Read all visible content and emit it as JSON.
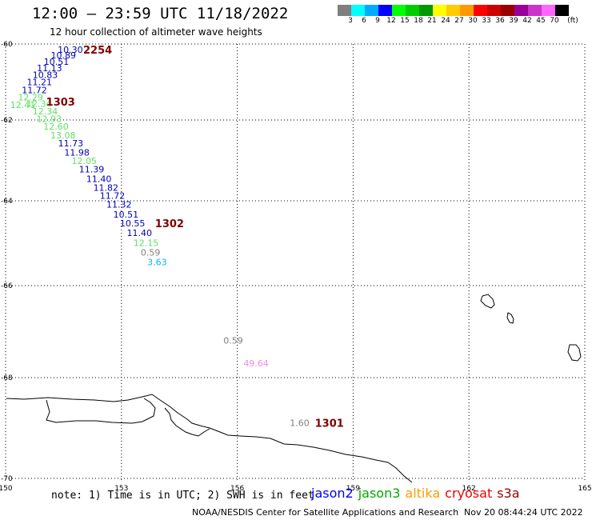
{
  "header": {
    "title": "12:00 – 23:59 UTC 11/18/2022",
    "subtitle": "12 hour collection of altimeter wave heights"
  },
  "color_scale": {
    "labels": [
      "3",
      "6",
      "9",
      "12",
      "15",
      "18",
      "21",
      "24",
      "27",
      "30",
      "33",
      "36",
      "39",
      "42",
      "45",
      "70",
      "(ft)"
    ],
    "colors": [
      "#7f7f7f",
      "#00ffff",
      "#00aaff",
      "#0000ff",
      "#00ff00",
      "#00cc00",
      "#009900",
      "#ffff00",
      "#ffcc00",
      "#ff9900",
      "#ff0000",
      "#cc0000",
      "#990000",
      "#990099",
      "#cc33cc",
      "#ff66ff",
      "#000000"
    ]
  },
  "axes": {
    "lon_labels": [
      "150",
      "153",
      "156",
      "159",
      "162",
      "165"
    ],
    "lat_labels": [
      "-60",
      "-62",
      "-64",
      "-66",
      "-68",
      "-70"
    ]
  },
  "map": {
    "lon_range": [
      150,
      165
    ],
    "lat_range": [
      -60,
      -70
    ],
    "obs_colors": {
      "gray": "#808080",
      "navy": "#0000b4",
      "green": "#60e060",
      "cyan": "#00b4ff",
      "pink": "#ee88ee",
      "time": "#800000"
    },
    "observations": [
      {
        "text": "10.30",
        "lon": 151.35,
        "lat": -60.04,
        "color": "navy"
      },
      {
        "text": "10.89",
        "lon": 151.17,
        "lat": -60.19,
        "color": "navy"
      },
      {
        "text": "10.51",
        "lon": 150.99,
        "lat": -60.36,
        "color": "navy"
      },
      {
        "text": "11.13",
        "lon": 150.81,
        "lat": -60.53,
        "color": "navy"
      },
      {
        "text": "10.83",
        "lon": 150.7,
        "lat": -60.7,
        "color": "navy"
      },
      {
        "text": "11.21",
        "lon": 150.55,
        "lat": -60.89,
        "color": "navy"
      },
      {
        "text": "11.72",
        "lon": 150.42,
        "lat": -61.11,
        "color": "navy"
      },
      {
        "text": "12.29",
        "lon": 150.32,
        "lat": -61.29,
        "color": "green"
      },
      {
        "text": "12.41",
        "lon": 150.12,
        "lat": -61.49,
        "color": "green"
      },
      {
        "text": "12.34",
        "lon": 150.54,
        "lat": -61.46,
        "color": "green"
      },
      {
        "text": "12.34",
        "lon": 150.7,
        "lat": -61.66,
        "color": "green"
      },
      {
        "text": "12.93",
        "lon": 150.8,
        "lat": -61.86,
        "color": "green"
      },
      {
        "text": "12.60",
        "lon": 150.98,
        "lat": -62.06,
        "color": "green"
      },
      {
        "text": "13.08",
        "lon": 151.16,
        "lat": -62.28,
        "color": "green"
      },
      {
        "text": "11.73",
        "lon": 151.36,
        "lat": -62.48,
        "color": "navy"
      },
      {
        "text": "11.98",
        "lon": 151.52,
        "lat": -62.7,
        "color": "navy"
      },
      {
        "text": "12.05",
        "lon": 151.71,
        "lat": -62.91,
        "color": "green"
      },
      {
        "text": "11.39",
        "lon": 151.9,
        "lat": -63.12,
        "color": "navy"
      },
      {
        "text": "11.40",
        "lon": 152.09,
        "lat": -63.36,
        "color": "navy"
      },
      {
        "text": "11.82",
        "lon": 152.27,
        "lat": -63.57,
        "color": "navy"
      },
      {
        "text": "11.72",
        "lon": 152.44,
        "lat": -63.77,
        "color": "navy"
      },
      {
        "text": "11.32",
        "lon": 152.61,
        "lat": -63.99,
        "color": "navy"
      },
      {
        "text": "10.51",
        "lon": 152.79,
        "lat": -64.23,
        "color": "navy"
      },
      {
        "text": "10.55",
        "lon": 152.96,
        "lat": -64.43,
        "color": "navy"
      },
      {
        "text": "11.40",
        "lon": 153.14,
        "lat": -64.66,
        "color": "navy"
      },
      {
        "text": "12.15",
        "lon": 153.31,
        "lat": -64.9,
        "color": "green"
      },
      {
        "text": "0.59",
        "lon": 153.5,
        "lat": -65.12,
        "color": "gray"
      },
      {
        "text": "3.63",
        "lon": 153.67,
        "lat": -65.35,
        "color": "cyan"
      },
      {
        "text": "0.59",
        "lon": 155.64,
        "lat": -67.1,
        "color": "gray"
      },
      {
        "text": "49.64",
        "lon": 156.16,
        "lat": -67.6,
        "color": "pink"
      },
      {
        "text": "1.60",
        "lon": 157.36,
        "lat": -68.82,
        "color": "gray"
      }
    ],
    "times": [
      {
        "text": "2254",
        "lon": 152.01,
        "lat": -60.04
      },
      {
        "text": "1303",
        "lon": 151.05,
        "lat": -61.41
      },
      {
        "text": "1302",
        "lon": 153.87,
        "lat": -64.43
      },
      {
        "text": "1301",
        "lon": 158.01,
        "lat": -68.82
      }
    ]
  },
  "footer": {
    "note": "note: 1) Time is in UTC; 2) SWH is in feet",
    "satellites": [
      {
        "name": "jason2",
        "color": "#0000ee"
      },
      {
        "name": "jason3",
        "color": "#00aa00"
      },
      {
        "name": "altika",
        "color": "#ff9900"
      },
      {
        "name": "cryosat",
        "color": "#ee0000"
      },
      {
        "name": "s3a",
        "color": "#990000"
      }
    ],
    "org": "NOAA/NESDIS Center for Satellite Applications and Research",
    "timestamp": "Nov 20 08:44:24 UTC 2022"
  }
}
